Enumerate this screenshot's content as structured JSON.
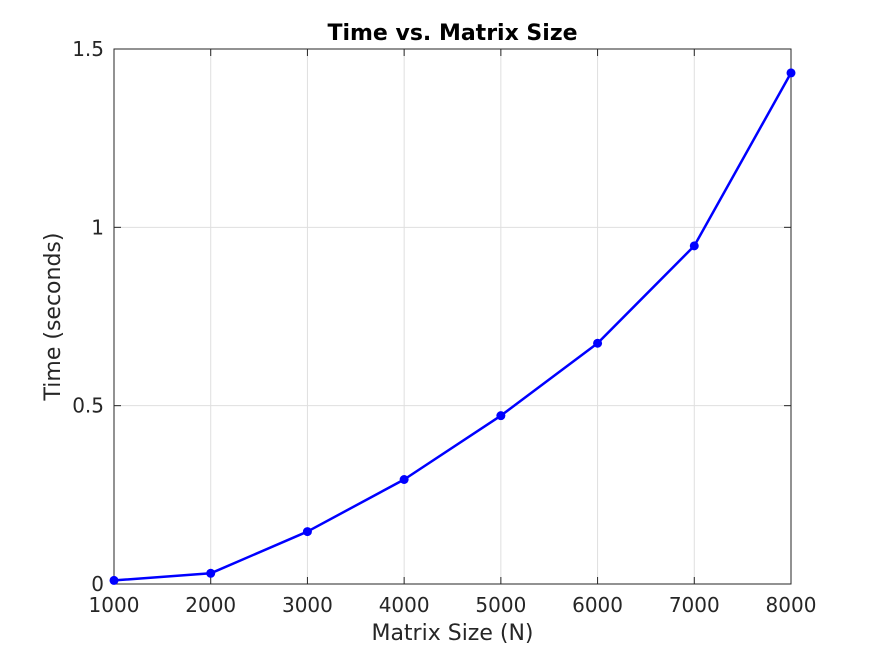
{
  "chart_data": {
    "type": "line",
    "title": "Time vs. Matrix Size",
    "xlabel": "Matrix Size (N)",
    "ylabel": "Time (seconds)",
    "x": [
      1000,
      2000,
      3000,
      4000,
      5000,
      6000,
      7000,
      8000
    ],
    "series": [
      {
        "values": [
          0.01,
          0.03,
          0.147,
          0.293,
          0.472,
          0.675,
          0.948,
          1.433
        ],
        "color": "#0000ff",
        "marker": "circle"
      }
    ],
    "xlim": [
      1000,
      8000
    ],
    "ylim": [
      0,
      1.5
    ],
    "xticks": [
      1000,
      2000,
      3000,
      4000,
      5000,
      6000,
      7000,
      8000
    ],
    "xtick_labels": [
      "1000",
      "2000",
      "3000",
      "4000",
      "5000",
      "6000",
      "7000",
      "8000"
    ],
    "yticks": [
      0,
      0.5,
      1,
      1.5
    ],
    "ytick_labels": [
      "0",
      "0.5",
      "1",
      "1.5"
    ],
    "grid": true
  }
}
